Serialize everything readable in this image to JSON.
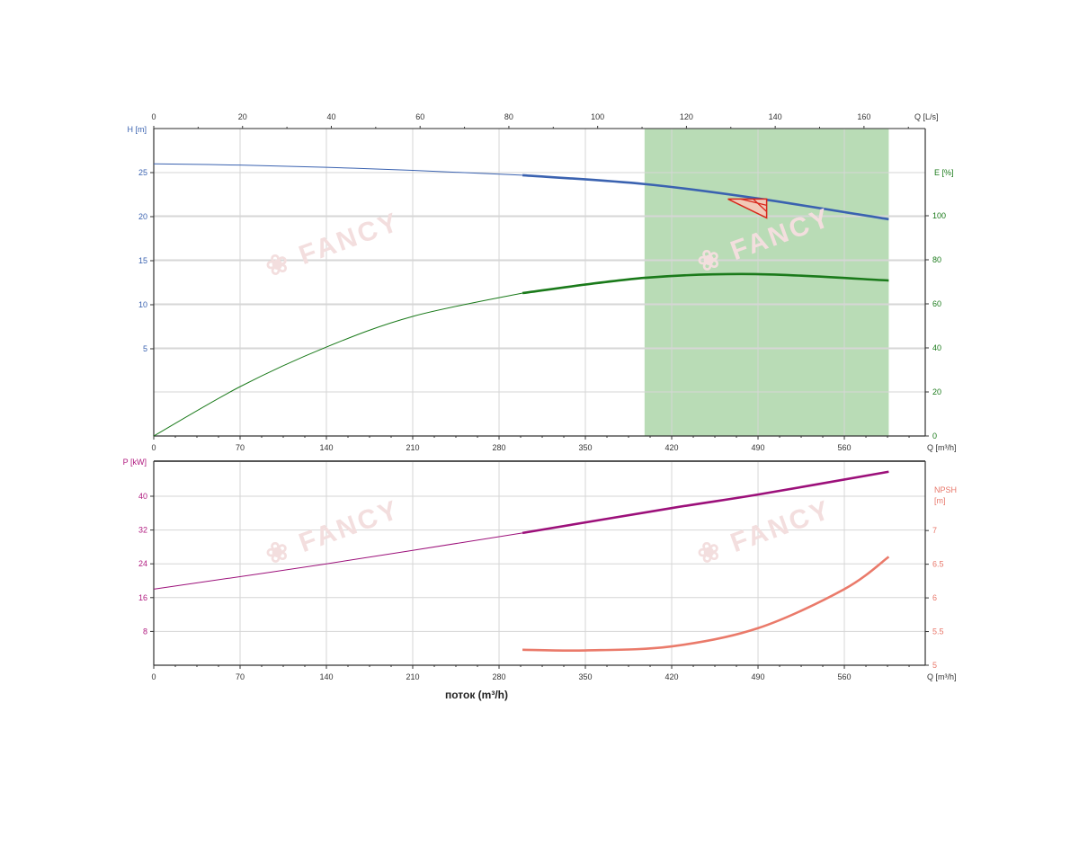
{
  "chart_data": [
    {
      "type": "line",
      "panel": "top",
      "x_top_axis": {
        "label": "Q [L/s]",
        "range": [
          0,
          173.8
        ],
        "ticks": [
          "0",
          "20",
          "40",
          "60",
          "80",
          "100",
          "120",
          "140",
          "160"
        ]
      },
      "x_axis": {
        "label": "Q [m³/h]",
        "range": [
          0,
          625.6
        ],
        "ticks": [
          "0",
          "70",
          "140",
          "210",
          "280",
          "350",
          "420",
          "490",
          "560"
        ]
      },
      "y_left": {
        "label": "H [m]",
        "range": [
          -4.9,
          30
        ],
        "ticks": [
          "5",
          "10",
          "15",
          "20",
          "25"
        ],
        "color": "#3a62b0"
      },
      "y_right": {
        "label": "E [%]",
        "range": [
          0,
          139.6
        ],
        "ticks": [
          "0",
          "20",
          "40",
          "60",
          "80",
          "100"
        ],
        "color": "#1a7a1a"
      },
      "grid": true,
      "operating_range": {
        "x": [
          398,
          596
        ],
        "color": "#b9dcb6"
      },
      "duty_point": {
        "q": 497,
        "h": 22.0,
        "color": "#d8271c"
      },
      "series": [
        {
          "axis": "left",
          "color": "#3a62b0",
          "thick_from": 299,
          "x": [
            0,
            70,
            140,
            210,
            299,
            398,
            488,
            596
          ],
          "y": [
            26.0,
            25.85,
            25.6,
            25.25,
            24.7,
            23.7,
            22.1,
            19.7
          ]
        },
        {
          "axis": "right",
          "color": "#1a7a1a",
          "thick_from": 299,
          "x": [
            0,
            70,
            140,
            210,
            299,
            398,
            488,
            596
          ],
          "y": [
            0,
            22.4,
            40.4,
            54.3,
            64.9,
            71.8,
            73.5,
            70.6
          ]
        }
      ]
    },
    {
      "type": "line",
      "panel": "bottom",
      "x_axis": {
        "label": "Q [m³/h]",
        "range": [
          0,
          625.6
        ],
        "ticks": [
          "0",
          "70",
          "140",
          "210",
          "280",
          "350",
          "420",
          "490",
          "560"
        ]
      },
      "xlabel": "поток (m³/h)",
      "y_left": {
        "label": "P [kW]",
        "range": [
          0,
          48.3
        ],
        "ticks": [
          "8",
          "16",
          "24",
          "32",
          "40"
        ],
        "color": "#b0197f"
      },
      "y_right": {
        "label_line1": "NPSH",
        "label_line2": "[m]",
        "range": [
          5,
          8.03
        ],
        "ticks": [
          "5",
          "5.5",
          "6",
          "6.5",
          "7"
        ],
        "color": "#e8776a"
      },
      "grid": true,
      "series": [
        {
          "axis": "left",
          "color": "#9c107a",
          "thick_from": 299,
          "x": [
            0,
            140,
            299,
            420,
            490,
            596
          ],
          "y": [
            18.0,
            24.0,
            31.3,
            37.2,
            40.4,
            45.8
          ]
        },
        {
          "axis": "right",
          "color": "#ea7a6a",
          "thick_from": 0,
          "x": [
            299,
            350,
            420,
            490,
            560,
            596
          ],
          "y": [
            5.23,
            5.22,
            5.28,
            5.55,
            6.13,
            6.61
          ]
        }
      ]
    }
  ],
  "watermark": "FANCY"
}
